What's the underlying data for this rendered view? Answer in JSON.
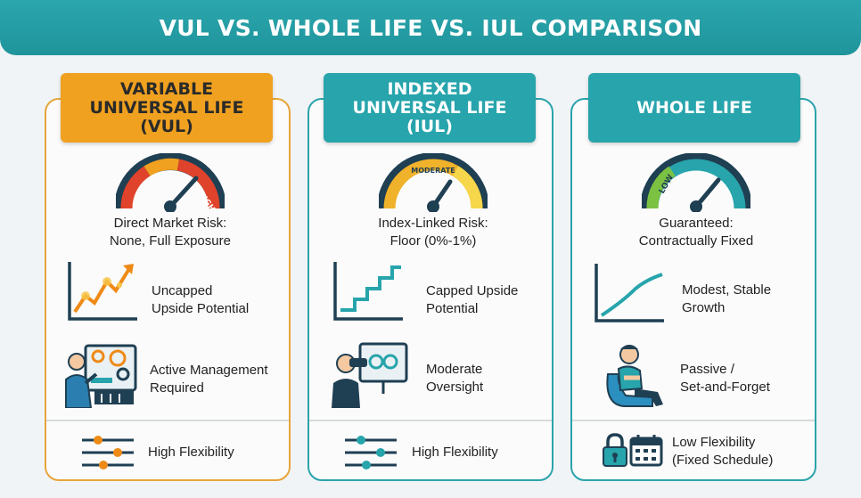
{
  "header": {
    "title": "VUL VS. WHOLE LIFE VS. IUL COMPARISON"
  },
  "columns": [
    {
      "title_lines": [
        "VARIABLE",
        "UNIVERSAL LIFE",
        "(VUL)"
      ],
      "gauge_label": "HIGH",
      "risk_lines": [
        "Direct Market Risk:",
        "None, Full Exposure"
      ],
      "growth_lines": [
        "Uncapped",
        "Upside Potential"
      ],
      "management_lines": [
        "Active Management",
        "Required"
      ],
      "flex_lines": [
        "High Flexibility"
      ],
      "accent": "#f0a11f"
    },
    {
      "title_lines": [
        "INDEXED",
        "UNIVERSAL LIFE",
        "(IUL)"
      ],
      "gauge_label": "MODERATE",
      "risk_lines": [
        "Index-Linked Risk:",
        "Floor (0%-1%)"
      ],
      "growth_lines": [
        "Capped Upside",
        "Potential"
      ],
      "management_lines": [
        "Moderate",
        "Oversight"
      ],
      "flex_lines": [
        "High Flexibility"
      ],
      "accent": "#27a4ac"
    },
    {
      "title_lines": [
        "WHOLE LIFE"
      ],
      "gauge_label": "LOW",
      "risk_lines": [
        "Guaranteed:",
        "Contractually Fixed"
      ],
      "growth_lines": [
        "Modest, Stable",
        "Growth"
      ],
      "management_lines": [
        "Passive /",
        "Set-and-Forget"
      ],
      "flex_lines": [
        "Low Flexibility",
        "(Fixed Schedule)"
      ],
      "accent": "#27a4ac"
    }
  ],
  "colors": {
    "teal": "#27a4ac",
    "orange": "#f0a11f",
    "red": "#e0432b",
    "green": "#4caf50",
    "dark": "#1f3f53"
  },
  "icons": [
    "gauge-icon",
    "growth-chart-icon",
    "staircase-chart-icon",
    "smooth-curve-icon",
    "control-panel-icon",
    "telescope-icon",
    "relaxed-person-icon",
    "sliders-icon",
    "lock-icon",
    "calendar-icon"
  ]
}
